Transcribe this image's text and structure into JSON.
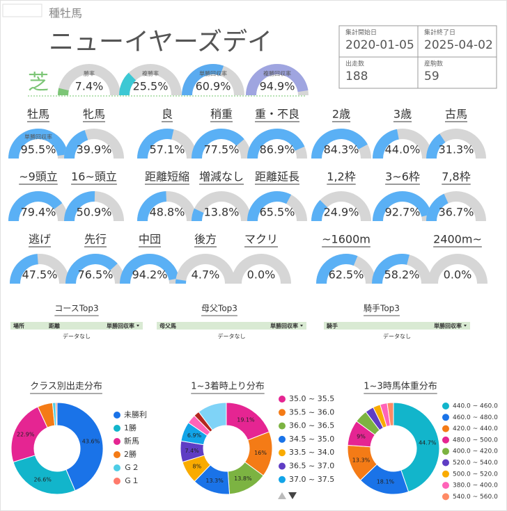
{
  "header": {
    "section": "種牡馬",
    "name": "ニューイヤーズデイ",
    "surface": "芝"
  },
  "stats": [
    {
      "label": "集計開始日",
      "value": "2020-01-05"
    },
    {
      "label": "集計終了日",
      "value": "2025-04-02"
    },
    {
      "label": "出走数",
      "value": 188
    },
    {
      "label": "産駒数",
      "value": 59
    }
  ],
  "gauge_range": [
    0,
    100
  ],
  "summary_gauges": [
    {
      "title": "勝率",
      "value": 7.4,
      "value_label": "7.4%",
      "color": "#7cc576"
    },
    {
      "title": "複勝率",
      "value": 25.5,
      "value_label": "25.5%",
      "color": "#3cc8d4"
    },
    {
      "title": "単勝回収率",
      "value": 60.9,
      "value_label": "60.9%",
      "color": "#5aabf0"
    },
    {
      "title": "複勝回収率",
      "value": 94.9,
      "value_label": "94.9%",
      "color": "#9fa5e0"
    }
  ],
  "gauge_color": "#5ab0f5",
  "gauge_rows": [
    [
      {
        "title": "牡馬",
        "metric": "単勝回収率",
        "value": 95.5,
        "value_label": "95.5%"
      },
      {
        "title": "牝馬",
        "value": 39.9,
        "value_label": "39.9%"
      },
      {
        "title": "良",
        "value": 57.1,
        "value_label": "57.1%"
      },
      {
        "title": "稍重",
        "value": 77.5,
        "value_label": "77.5%"
      },
      {
        "title": "重・不良",
        "value": 86.9,
        "value_label": "86.9%"
      },
      {
        "title": "2歳",
        "value": 84.3,
        "value_label": "84.3%"
      },
      {
        "title": "3歳",
        "value": 44.0,
        "value_label": "44.0%"
      },
      {
        "title": "古馬",
        "value": 31.3,
        "value_label": "31.3%"
      }
    ],
    [
      {
        "title": "~9頭立",
        "value": 79.4,
        "value_label": "79.4%"
      },
      {
        "title": "16~頭立",
        "value": 50.9,
        "value_label": "50.9%"
      },
      {
        "title": "距離短縮",
        "value": 48.8,
        "value_label": "48.8%"
      },
      {
        "title": "増減なし",
        "value": 13.8,
        "value_label": "13.8%"
      },
      {
        "title": "距離延長",
        "value": 65.5,
        "value_label": "65.5%"
      },
      {
        "title": "1,2枠",
        "value": 24.9,
        "value_label": "24.9%"
      },
      {
        "title": "3~6枠",
        "value": 92.7,
        "value_label": "92.7%"
      },
      {
        "title": "7,8枠",
        "value": 36.7,
        "value_label": "36.7%"
      }
    ],
    [
      {
        "title": "逃げ",
        "value": 47.5,
        "value_label": "47.5%"
      },
      {
        "title": "先行",
        "value": 76.5,
        "value_label": "76.5%"
      },
      {
        "title": "中団",
        "value": 94.2,
        "value_label": "94.2%"
      },
      {
        "title": "後方",
        "value": 4.7,
        "value_label": "4.7%"
      },
      {
        "title": "マクリ",
        "value": 0.0,
        "value_label": "0.0%"
      },
      {
        "title": "~1600m",
        "value": 62.5,
        "value_label": "62.5%"
      },
      {
        "title": null,
        "value": 58.2,
        "value_label": "58.2%"
      },
      {
        "title": "2400m~",
        "value": 0.0,
        "value_label": "0.0%"
      }
    ]
  ],
  "tables": [
    {
      "title": "コースTop3",
      "columns": [
        "場所",
        "距離",
        "単勝回収率"
      ],
      "empty": "データなし"
    },
    {
      "title": "母父Top3",
      "columns": [
        "母父馬",
        "単勝回収率"
      ],
      "empty": "データなし"
    },
    {
      "title": "騎手Top3",
      "columns": [
        "騎手",
        "単勝回収率"
      ],
      "empty": "データなし"
    }
  ],
  "chart_data": [
    {
      "type": "pie",
      "title": "クラス別出走分布",
      "categories": [
        "未勝利",
        "1勝",
        "新馬",
        "2勝",
        "Ｇ２",
        "Ｇ１"
      ],
      "values": [
        43.6,
        26.6,
        22.9,
        5.3,
        1.1,
        0.5
      ],
      "value_labels": [
        "43.6%",
        "26.6%",
        "22.9%",
        null,
        null,
        null
      ],
      "colors": [
        "#1a73e8",
        "#12b5cb",
        "#e52592",
        "#f47b16",
        "#4ecde6",
        "#ff7a6b"
      ]
    },
    {
      "type": "pie",
      "title": "1~3着時上り分布",
      "categories": [
        "35.0 ~ 35.5",
        "35.5 ~ 36.0",
        "36.0 ~ 36.5",
        "34.5 ~ 35.0",
        "33.5 ~ 34.0",
        "36.5 ~ 37.0",
        "37.0 ~ 37.5",
        null,
        null,
        null
      ],
      "values": [
        19.1,
        16,
        13.8,
        13.3,
        8,
        7.4,
        6.9,
        3.2,
        2.0,
        10.3
      ],
      "value_labels": [
        "19.1%",
        "16%",
        "13.8%",
        "13.3%",
        "8%",
        "7.4%",
        "6.9%",
        null,
        null,
        null
      ],
      "colors": [
        "#e52592",
        "#f47b16",
        "#7cb342",
        "#1a73e8",
        "#f9ab00",
        "#5f3dc4",
        "#12a4e8",
        "#ff63b8",
        "#b3261e",
        "#7fd3f7"
      ]
    },
    {
      "type": "pie",
      "title": "1~3時馬体重分布",
      "categories": [
        "440.0 ~ 460.0",
        "460.0 ~ 480.0",
        "420.0 ~ 440.0",
        "480.0 ~ 500.0",
        "400.0 ~ 420.0",
        "520.0 ~ 540.0",
        "500.0 ~ 520.0",
        "380.0 ~ 400.0",
        "540.0 ~ 560.0"
      ],
      "values": [
        44.7,
        18.1,
        13.3,
        9,
        4.6,
        3.0,
        2.6,
        2.5,
        2.2
      ],
      "value_labels": [
        "44.7%",
        "18.1%",
        "13.3%",
        "9%",
        null,
        null,
        null,
        null,
        null
      ],
      "colors": [
        "#12b5cb",
        "#1a73e8",
        "#f47b16",
        "#e52592",
        "#7cb342",
        "#5f3dc4",
        "#f9ab00",
        "#ff63b8",
        "#ff8a65"
      ]
    }
  ]
}
